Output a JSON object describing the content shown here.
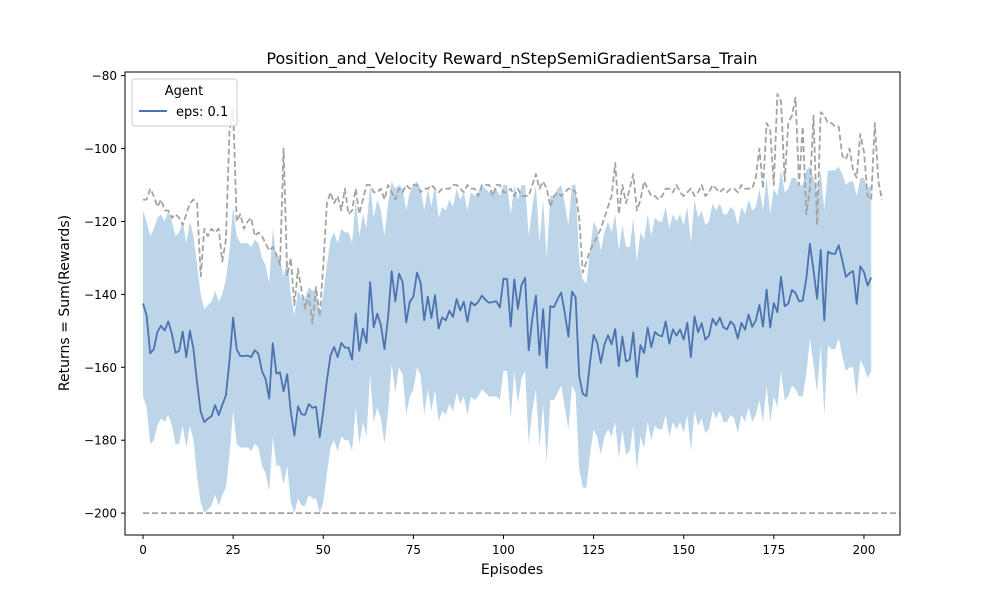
{
  "chart_data": {
    "type": "line",
    "title": "Position_and_Velocity Reward_nStepSemiGradientSarsa_Train",
    "xlabel": "Episodes",
    "ylabel": "Returns = Sum(Rewards)",
    "xlim": [
      -5,
      210
    ],
    "ylim": [
      -206,
      -79
    ],
    "xticks": [
      0,
      25,
      50,
      75,
      100,
      125,
      150,
      175,
      200
    ],
    "yticks": [
      -200,
      -180,
      -160,
      -140,
      -120,
      -100,
      -80
    ],
    "xtick_labels": [
      "0",
      "25",
      "50",
      "75",
      "100",
      "125",
      "150",
      "175",
      "200"
    ],
    "ytick_labels": [
      "−200",
      "−180",
      "−160",
      "−140",
      "−120",
      "−100",
      "−80"
    ],
    "legend": {
      "title": "Agent",
      "placement": "top-left",
      "entries": [
        "eps: 0.1"
      ]
    },
    "colors": {
      "mean": "#4c72b0",
      "band": "#bcd5e8",
      "minmax": "#a3a3a3"
    },
    "series": [
      {
        "name": "eps: 0.1",
        "role": "mean",
        "x_start": 0,
        "x_step": 1,
        "values": [
          -142.5,
          -145.8,
          -156.2,
          -155.0,
          -150.3,
          -148.6,
          -149.9,
          -147.4,
          -150.8,
          -156.0,
          -155.5,
          -150.2,
          -157.2,
          -150.0,
          -155.0,
          -164.3,
          -172.2,
          -175.0,
          -174.1,
          -173.4,
          -170.4,
          -173.1,
          -170.3,
          -167.7,
          -158.2,
          -146.4,
          -155.1,
          -156.9,
          -156.9,
          -156.8,
          -157.2,
          -155.3,
          -156.3,
          -161.1,
          -163.2,
          -168.6,
          -153.4,
          -161.7,
          -161.4,
          -166.6,
          -161.9,
          -172.2,
          -178.7,
          -170.7,
          -172.9,
          -173.0,
          -170.1,
          -171.1,
          -170.8,
          -179.2,
          -172.0,
          -163.6,
          -156.8,
          -154.4,
          -157.2,
          -153.3,
          -154.6,
          -154.6,
          -157.9,
          -145.3,
          -155.5,
          -149.4,
          -153.3,
          -136.6,
          -149.0,
          -145.3,
          -148.5,
          -155.0,
          -146.2,
          -133.6,
          -141.9,
          -134.3,
          -136.6,
          -147.7,
          -142.0,
          -140.6,
          -134.0,
          -136.8,
          -147.1,
          -140.6,
          -146.5,
          -140.2,
          -149.4,
          -146.3,
          -147.1,
          -144.5,
          -146.2,
          -141.3,
          -144.4,
          -142.0,
          -147.5,
          -142.1,
          -143.0,
          -142.1,
          -140.3,
          -141.5,
          -142.3,
          -142.1,
          -141.9,
          -143.6,
          -135.7,
          -135.8,
          -148.8,
          -135.9,
          -144.0,
          -137.4,
          -135.5,
          -155.3,
          -146.7,
          -140.3,
          -156.6,
          -144.1,
          -160.2,
          -143.2,
          -143.5,
          -141.3,
          -139.5,
          -145.2,
          -151.6,
          -139.2,
          -140.8,
          -162.4,
          -167.3,
          -167.9,
          -158.6,
          -151.1,
          -153.3,
          -158.8,
          -153.8,
          -151.2,
          -153.7,
          -149.5,
          -159.7,
          -151.6,
          -158.4,
          -157.9,
          -150.4,
          -162.6,
          -153.9,
          -156.1,
          -149.1,
          -154.5,
          -150.3,
          -151.2,
          -151.5,
          -147.4,
          -153.5,
          -149.6,
          -151.3,
          -149.6,
          -152.4,
          -147.8,
          -157.2,
          -146.0,
          -150.4,
          -147.9,
          -152.4,
          -151.3,
          -146.7,
          -148.4,
          -146.4,
          -149.0,
          -149.6,
          -147.4,
          -148.5,
          -152.1,
          -147.8,
          -149.7,
          -145.5,
          -148.9,
          -147.2,
          -142.9,
          -148.8,
          -138.7,
          -149.1,
          -142.4,
          -144.9,
          -135.2,
          -143.3,
          -142.5,
          -138.8,
          -139.6,
          -141.9,
          -141.7,
          -135.7,
          -126.1,
          -133.4,
          -141.2,
          -127.8,
          -147.2,
          -128.3,
          -128.8,
          -128.9,
          -126.5,
          -130.7,
          -135.2,
          -134.2,
          -133.6,
          -142.6,
          -132.3,
          -133.9,
          -137.6,
          -135.4
        ]
      },
      {
        "name": "",
        "role": "band_upper",
        "x_start": 0,
        "x_step": 1,
        "values": [
          -117,
          -120,
          -124,
          -122,
          -119,
          -118,
          -120,
          -117,
          -120,
          -124,
          -123,
          -120,
          -126,
          -120,
          -124,
          -132,
          -140,
          -144,
          -143,
          -142,
          -139,
          -142,
          -140,
          -136,
          -128,
          -116,
          -124,
          -126,
          -126,
          -126,
          -127,
          -125,
          -126,
          -130,
          -132,
          -137,
          -122,
          -130,
          -130,
          -135,
          -130,
          -140,
          -146,
          -139,
          -141,
          -141,
          -138,
          -139,
          -139,
          -146,
          -140,
          -132,
          -125,
          -123,
          -126,
          -122,
          -123,
          -123,
          -126,
          -114,
          -124,
          -118,
          -122,
          -110,
          -119,
          -114,
          -117,
          -124,
          -115,
          -109,
          -111,
          -110,
          -111,
          -117,
          -112,
          -110,
          -109,
          -111,
          -117,
          -111,
          -116,
          -110,
          -119,
          -116,
          -117,
          -114,
          -116,
          -111,
          -114,
          -112,
          -117,
          -112,
          -113,
          -112,
          -110,
          -111,
          -112,
          -112,
          -111,
          -113,
          -110,
          -110,
          -118,
          -110,
          -114,
          -110,
          -110,
          -124,
          -116,
          -110,
          -126,
          -114,
          -130,
          -113,
          -113,
          -111,
          -110,
          -115,
          -121,
          -110,
          -110,
          -131,
          -136,
          -137,
          -128,
          -120,
          -122,
          -128,
          -123,
          -120,
          -123,
          -118,
          -128,
          -121,
          -127,
          -127,
          -119,
          -131,
          -123,
          -125,
          -118,
          -124,
          -119,
          -120,
          -120,
          -116,
          -122,
          -118,
          -120,
          -118,
          -121,
          -116,
          -126,
          -114,
          -119,
          -117,
          -121,
          -120,
          -115,
          -117,
          -115,
          -118,
          -118,
          -116,
          -117,
          -121,
          -116,
          -118,
          -114,
          -117,
          -116,
          -111,
          -117,
          -108,
          -118,
          -111,
          -113,
          -106,
          -112,
          -111,
          -108,
          -108,
          -110,
          -110,
          -106,
          -105,
          -108,
          -112,
          -106,
          -117,
          -106,
          -106,
          -106,
          -105,
          -107,
          -110,
          -109,
          -109,
          -113,
          -108,
          -108,
          -111,
          -110
        ]
      },
      {
        "name": "",
        "role": "band_lower",
        "x_start": 0,
        "x_step": 1,
        "values": [
          -168,
          -171,
          -181,
          -180,
          -176,
          -174,
          -175,
          -173,
          -176,
          -181,
          -181,
          -176,
          -182,
          -176,
          -180,
          -190,
          -197,
          -200,
          -199,
          -198,
          -195,
          -198,
          -195,
          -193,
          -184,
          -172,
          -181,
          -182,
          -182,
          -182,
          -183,
          -181,
          -182,
          -187,
          -189,
          -194,
          -179,
          -187,
          -187,
          -192,
          -187,
          -197,
          -200,
          -196,
          -198,
          -198,
          -195,
          -196,
          -196,
          -200,
          -197,
          -189,
          -182,
          -180,
          -183,
          -179,
          -180,
          -180,
          -183,
          -171,
          -181,
          -175,
          -179,
          -162,
          -175,
          -171,
          -174,
          -181,
          -172,
          -159,
          -167,
          -160,
          -162,
          -173,
          -168,
          -166,
          -160,
          -162,
          -173,
          -166,
          -172,
          -166,
          -175,
          -172,
          -173,
          -170,
          -172,
          -167,
          -170,
          -168,
          -173,
          -168,
          -169,
          -168,
          -166,
          -167,
          -168,
          -168,
          -168,
          -169,
          -161,
          -161,
          -174,
          -161,
          -170,
          -163,
          -161,
          -181,
          -172,
          -166,
          -182,
          -170,
          -186,
          -169,
          -169,
          -167,
          -165,
          -171,
          -177,
          -165,
          -167,
          -188,
          -193,
          -193,
          -184,
          -177,
          -179,
          -184,
          -179,
          -177,
          -179,
          -175,
          -185,
          -177,
          -184,
          -183,
          -176,
          -188,
          -179,
          -182,
          -175,
          -180,
          -176,
          -177,
          -177,
          -173,
          -179,
          -175,
          -177,
          -175,
          -178,
          -173,
          -183,
          -172,
          -176,
          -174,
          -178,
          -177,
          -172,
          -174,
          -172,
          -175,
          -175,
          -173,
          -174,
          -178,
          -173,
          -175,
          -171,
          -175,
          -173,
          -169,
          -175,
          -165,
          -175,
          -168,
          -171,
          -161,
          -169,
          -168,
          -165,
          -166,
          -168,
          -168,
          -162,
          -152,
          -159,
          -167,
          -154,
          -173,
          -154,
          -155,
          -155,
          -152,
          -157,
          -161,
          -160,
          -160,
          -168,
          -158,
          -160,
          -163,
          -161
        ]
      },
      {
        "name": "",
        "role": "max",
        "x_start": 0,
        "x_step": 1,
        "values": [
          -114,
          -114,
          -111,
          -113,
          -116,
          -114,
          -117,
          -117,
          -119,
          -118,
          -119,
          -121,
          -118,
          -115,
          -114,
          -115,
          -135,
          -122,
          -124,
          -122,
          -123,
          -122,
          -131,
          -125,
          -95,
          -89,
          -120,
          -118,
          -122,
          -120,
          -119,
          -124,
          -123,
          -124,
          -126,
          -128,
          -127,
          -129,
          -132,
          -100,
          -135,
          -130,
          -143,
          -133,
          -139,
          -144,
          -140,
          -148,
          -138,
          -146,
          -132,
          -115,
          -112,
          -115,
          -113,
          -117,
          -111,
          -118,
          -117,
          -111,
          -118,
          -114,
          -110,
          -110,
          -112,
          -112,
          -111,
          -114,
          -110,
          -112,
          -114,
          -111,
          -112,
          -110,
          -111,
          -110,
          -110,
          -112,
          -111,
          -111,
          -110,
          -111,
          -112,
          -111,
          -111,
          -111,
          -110,
          -110,
          -111,
          -112,
          -110,
          -111,
          -111,
          -113,
          -110,
          -110,
          -110,
          -113,
          -110,
          -110,
          -112,
          -112,
          -111,
          -113,
          -111,
          -113,
          -113,
          -113,
          -110,
          -107,
          -111,
          -109,
          -111,
          -116,
          -113,
          -112,
          -113,
          -112,
          -111,
          -111,
          -112,
          -119,
          -134,
          -131,
          -128,
          -126,
          -124,
          -122,
          -119,
          -116,
          -113,
          -104,
          -118,
          -110,
          -115,
          -111,
          -107,
          -117,
          -114,
          -109,
          -111,
          -113,
          -113,
          -114,
          -113,
          -111,
          -111,
          -112,
          -110,
          -112,
          -113,
          -112,
          -111,
          -113,
          -112,
          -110,
          -113,
          -112,
          -110,
          -111,
          -112,
          -111,
          -112,
          -111,
          -111,
          -112,
          -110,
          -111,
          -111,
          -111,
          -108,
          -100,
          -111,
          -93,
          -95,
          -110,
          -85,
          -87,
          -109,
          -93,
          -91,
          -86,
          -110,
          -94,
          -118,
          -111,
          -91,
          -121,
          -90,
          -91,
          -93,
          -93,
          -94,
          -94,
          -102,
          -103,
          -100,
          -106,
          -108,
          -96,
          -101,
          -113,
          -114,
          -93,
          -109,
          -114
        ]
      },
      {
        "name": "",
        "role": "min",
        "x_start": 0,
        "x_step": 1,
        "values": [
          -200,
          -200,
          -200,
          -200,
          -200,
          -200,
          -200,
          -200,
          -200,
          -200,
          -200,
          -200,
          -200,
          -200,
          -200,
          -200,
          -200,
          -200,
          -200,
          -200,
          -200,
          -200,
          -200,
          -200,
          -200,
          -200,
          -200,
          -200,
          -200,
          -200,
          -200,
          -200,
          -200,
          -200,
          -200,
          -200,
          -200,
          -200,
          -200,
          -200,
          -200,
          -200,
          -200,
          -200,
          -200,
          -200,
          -200,
          -200,
          -200,
          -200,
          -200,
          -200,
          -200,
          -200,
          -200,
          -200,
          -200,
          -200,
          -200,
          -200,
          -200,
          -200,
          -200,
          -200,
          -200,
          -200,
          -200,
          -200,
          -200,
          -200,
          -200,
          -200,
          -200,
          -200,
          -200,
          -200,
          -200,
          -200,
          -200,
          -200,
          -200,
          -200,
          -200,
          -200,
          -200,
          -200,
          -200,
          -200,
          -200,
          -200,
          -200,
          -200,
          -200,
          -200,
          -200,
          -200,
          -200,
          -200,
          -200,
          -200,
          -200,
          -200,
          -200,
          -200,
          -200,
          -200,
          -200,
          -200,
          -200,
          -200,
          -200,
          -200,
          -200,
          -200,
          -200,
          -200,
          -200,
          -200,
          -200,
          -200,
          -200,
          -200,
          -200,
          -200,
          -200,
          -200,
          -200,
          -200,
          -200,
          -200,
          -200,
          -200,
          -200,
          -200,
          -200,
          -200,
          -200,
          -200,
          -200,
          -200,
          -200,
          -200,
          -200,
          -200,
          -200,
          -200,
          -200,
          -200,
          -200,
          -200,
          -200,
          -200,
          -200,
          -200,
          -200,
          -200,
          -200,
          -200,
          -200,
          -200,
          -200,
          -200,
          -200,
          -200,
          -200,
          -200,
          -200,
          -200,
          -200,
          -200,
          -200,
          -200,
          -200,
          -200,
          -200,
          -200,
          -200,
          -200,
          -200,
          -200,
          -200,
          -200,
          -200,
          -200,
          -200,
          -200,
          -200,
          -200,
          -200,
          -200,
          -200,
          -200,
          -200,
          -200,
          -200,
          -200,
          -200,
          -200,
          -200,
          -200,
          -200,
          -200,
          -200,
          -200,
          -200,
          -200,
          -200,
          -200,
          -200,
          -200,
          -200
        ]
      }
    ]
  }
}
